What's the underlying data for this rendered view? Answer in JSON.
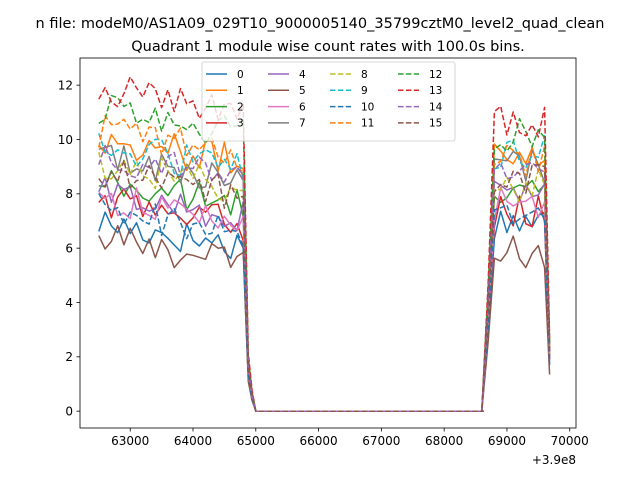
{
  "suptitle": "n file: modeM0/AS1A09_029T10_9000005140_35799cztM0_level2_quad_clean",
  "chart_data": {
    "type": "line",
    "title": "Quadrant 1 module wise count rates with 100.0s bins.",
    "xlabel": "",
    "ylabel": "",
    "xlim": [
      62200,
      70100
    ],
    "ylim": [
      -0.62,
      13.0
    ],
    "x_offset_label": "+3.9e8",
    "x_ticks": [
      63000,
      64000,
      65000,
      66000,
      67000,
      68000,
      69000,
      70000
    ],
    "x_tick_labels": [
      "63000",
      "64000",
      "65000",
      "66000",
      "67000",
      "68000",
      "69000",
      "70000"
    ],
    "y_ticks": [
      0,
      2,
      4,
      6,
      8,
      10,
      12
    ],
    "y_tick_labels": [
      "0",
      "2",
      "4",
      "6",
      "8",
      "10",
      "12"
    ],
    "grid": false,
    "legend_position": "top-center",
    "legend_columns": 4,
    "gap": {
      "start": 64980,
      "end": 68620
    },
    "segment1_x": {
      "start": 62500,
      "end": 64800,
      "step": 100
    },
    "segment2_x": {
      "start": 68800,
      "end": 69600,
      "step": 100
    },
    "drop_points": [
      {
        "x": 64880,
        "value": 1.5
      },
      {
        "x": 64940,
        "value": 0.55
      },
      {
        "x": 65000,
        "value": 0
      }
    ],
    "rise_points": [
      {
        "x": 68600,
        "value": 0
      },
      {
        "x": 68700,
        "value": 3.5
      }
    ],
    "end_point": {
      "x": 69680
    },
    "series": [
      {
        "name": "0",
        "color": "#1f77b4",
        "style": "solid",
        "base1": 6.4,
        "base2": 7.0,
        "end_value": 1.7
      },
      {
        "name": "1",
        "color": "#ff7f0e",
        "style": "solid",
        "base1": 9.5,
        "base2": 9.6,
        "end_value": 2.3
      },
      {
        "name": "2",
        "color": "#2ca02c",
        "style": "solid",
        "base1": 7.9,
        "base2": 8.1,
        "end_value": 2.0
      },
      {
        "name": "3",
        "color": "#d62728",
        "style": "solid",
        "base1": 7.2,
        "base2": 7.4,
        "end_value": 1.9
      },
      {
        "name": "4",
        "color": "#9467bd",
        "style": "solid",
        "base1": 7.5,
        "base2": 8.2,
        "end_value": 2.0
      },
      {
        "name": "5",
        "color": "#8c564b",
        "style": "solid",
        "base1": 5.8,
        "base2": 5.8,
        "end_value": 1.35
      },
      {
        "name": "6",
        "color": "#e377c2",
        "style": "solid",
        "base1": 7.3,
        "base2": 7.6,
        "end_value": 1.9
      },
      {
        "name": "7",
        "color": "#7f7f7f",
        "style": "solid",
        "base1": 8.8,
        "base2": 9.0,
        "end_value": 2.2
      },
      {
        "name": "8",
        "color": "#bcbd22",
        "style": "dashed",
        "base1": 8.6,
        "base2": 8.3,
        "end_value": 2.1
      },
      {
        "name": "9",
        "color": "#17becf",
        "style": "dashed",
        "base1": 9.2,
        "base2": 9.5,
        "end_value": 2.3
      },
      {
        "name": "10",
        "color": "#1f77b4",
        "style": "dashed",
        "base1": 6.9,
        "base2": 7.1,
        "end_value": 1.8
      },
      {
        "name": "11",
        "color": "#ff7f0e",
        "style": "dashed",
        "base1": 9.8,
        "base2": 9.2,
        "end_value": 2.3
      },
      {
        "name": "12",
        "color": "#2ca02c",
        "style": "dashed",
        "base1": 10.6,
        "base2": 10.2,
        "end_value": 2.5
      },
      {
        "name": "13",
        "color": "#d62728",
        "style": "dashed",
        "base1": 11.4,
        "base2": 10.7,
        "end_value": 2.7
      },
      {
        "name": "14",
        "color": "#9467bd",
        "style": "dashed",
        "base1": 8.9,
        "base2": 9.0,
        "end_value": 2.2
      },
      {
        "name": "15",
        "color": "#8c564b",
        "style": "dashed",
        "base1": 8.3,
        "base2": 8.6,
        "end_value": 2.1
      }
    ]
  }
}
